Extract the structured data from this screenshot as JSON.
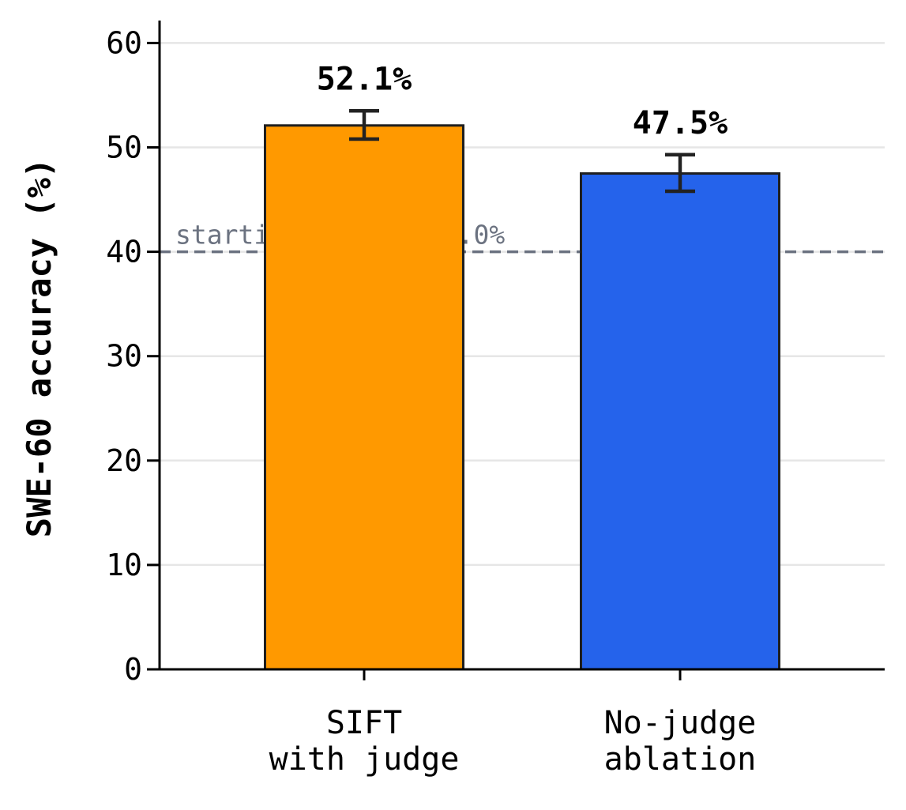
{
  "chart_data": {
    "type": "bar",
    "ylabel": "SWE-60 accuracy (%)",
    "xlabel": "",
    "ylim": [
      0,
      62
    ],
    "yticks": [
      0,
      10,
      20,
      30,
      40,
      50,
      60
    ],
    "grid": "horizontal",
    "categories": [
      [
        "SIFT",
        "with judge"
      ],
      [
        "No-judge",
        "ablation"
      ]
    ],
    "values": [
      52.1,
      47.5
    ],
    "error_low": [
      50.8,
      45.8
    ],
    "error_high": [
      53.5,
      49.3
    ],
    "value_labels": [
      "52.1%",
      "47.5%"
    ],
    "colors": [
      "#ff9900",
      "#2563eb"
    ],
    "reference_line": {
      "value": 40.0,
      "label": "starting agent: 40.0%",
      "color": "#6b7280",
      "style": "dashed"
    }
  }
}
